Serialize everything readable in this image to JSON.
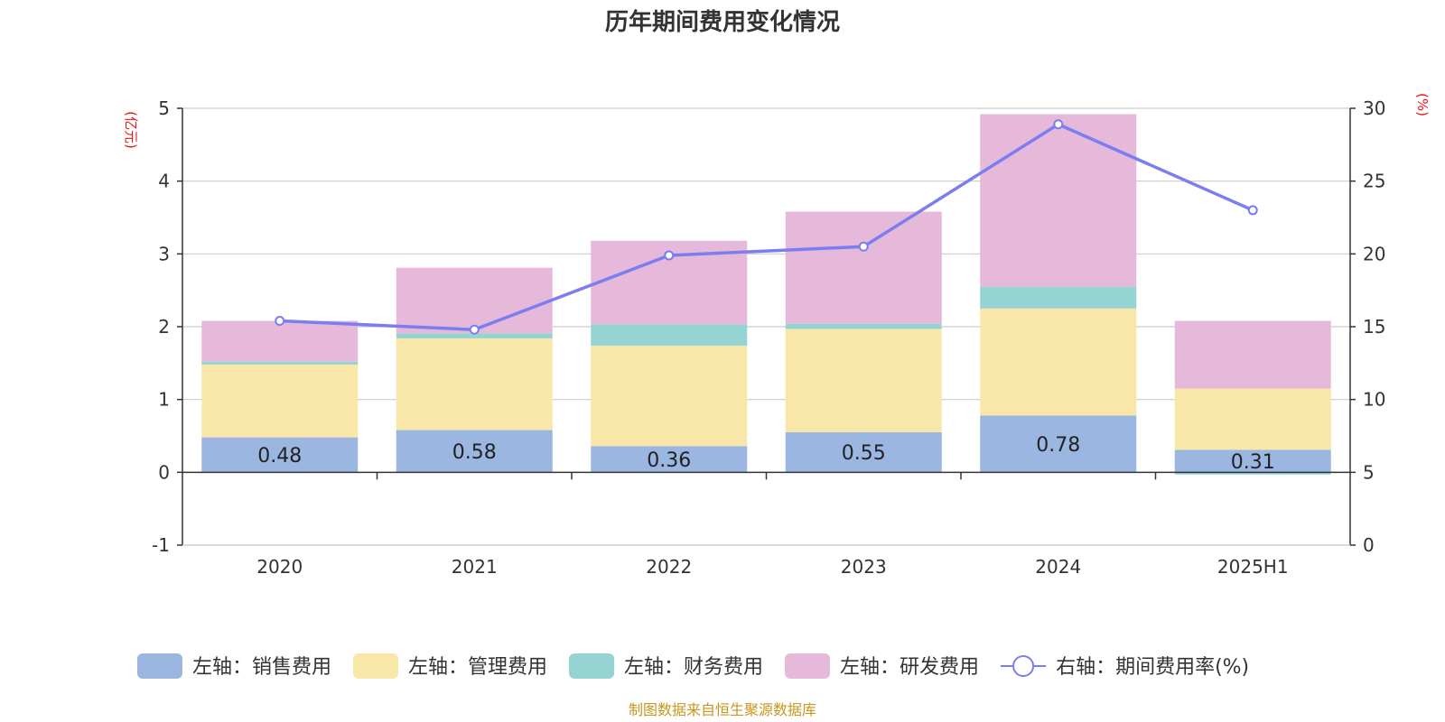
{
  "colors": {
    "sales": "#9bb7e1",
    "admin": "#f8e7a8",
    "finance": "#95d4d3",
    "rnd": "#e6b8d9",
    "rate": "#7b7ef0",
    "axis_unit": "#e8170f",
    "source": "#c8961e"
  },
  "chart_data": {
    "type": "bar",
    "stacked": true,
    "title": "历年期间费用变化情况",
    "categories": [
      "2020",
      "2021",
      "2022",
      "2023",
      "2024",
      "2025H1"
    ],
    "left_axis": {
      "unit_label": "(亿元)",
      "ylim": [
        -1,
        5
      ],
      "ticks": [
        "5",
        "4",
        "3",
        "2",
        "1",
        "0",
        "-1"
      ]
    },
    "right_axis": {
      "unit_label": "(%)",
      "ylim": [
        0,
        30
      ],
      "ticks": [
        "30",
        "25",
        "20",
        "15",
        "10",
        "5",
        "0"
      ]
    },
    "series": [
      {
        "name": "左轴：销售费用",
        "key": "sales",
        "axis": "left",
        "values": [
          0.48,
          0.58,
          0.36,
          0.55,
          0.78,
          0.31
        ],
        "labels": [
          "0.48",
          "0.58",
          "0.36",
          "0.55",
          "0.78",
          "0.31"
        ]
      },
      {
        "name": "左轴：管理费用",
        "key": "admin",
        "axis": "left",
        "values": [
          1.0,
          1.26,
          1.38,
          1.42,
          1.47,
          0.84
        ]
      },
      {
        "name": "左轴：财务费用",
        "key": "finance",
        "axis": "left",
        "values": [
          0.04,
          0.07,
          0.29,
          0.07,
          0.3,
          -0.03
        ]
      },
      {
        "name": "左轴：研发费用",
        "key": "rnd",
        "axis": "left",
        "values": [
          0.56,
          0.9,
          1.15,
          1.54,
          2.37,
          0.93
        ]
      },
      {
        "name": "右轴：期间费用率(%)",
        "key": "rate",
        "axis": "right",
        "type": "line",
        "values": [
          15.4,
          14.8,
          19.9,
          20.5,
          28.9,
          23.0
        ]
      }
    ],
    "grid": true,
    "legend_position": "bottom"
  },
  "source_note": "制图数据来自恒生聚源数据库"
}
